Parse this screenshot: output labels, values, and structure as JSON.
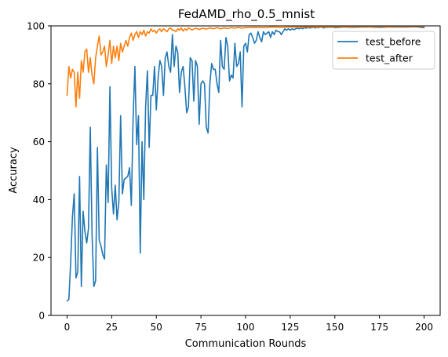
{
  "chart_data": {
    "type": "line",
    "title": "FedAMD_rho_0.5_mnist",
    "xlabel": "Communication Rounds",
    "ylabel": "Accuracy",
    "xlim": [
      -9,
      209
    ],
    "ylim": [
      0,
      100
    ],
    "xticks": [
      0,
      25,
      50,
      75,
      100,
      125,
      150,
      175,
      200
    ],
    "yticks": [
      0,
      20,
      40,
      60,
      80,
      100
    ],
    "grid": false,
    "legend": "top-right",
    "series": [
      {
        "name": "test_before",
        "color": "#1f77b4",
        "points": [
          [
            0,
            5
          ],
          [
            1,
            5.5
          ],
          [
            2,
            18
          ],
          [
            3,
            34
          ],
          [
            4,
            42
          ],
          [
            5,
            13
          ],
          [
            6,
            15
          ],
          [
            7,
            48
          ],
          [
            8,
            10
          ],
          [
            9,
            36
          ],
          [
            10,
            29
          ],
          [
            11,
            25
          ],
          [
            12,
            30
          ],
          [
            13,
            65
          ],
          [
            14,
            28
          ],
          [
            15,
            10
          ],
          [
            16,
            12
          ],
          [
            17,
            58
          ],
          [
            18,
            26
          ],
          [
            19,
            24
          ],
          [
            20,
            21
          ],
          [
            21,
            19.5
          ],
          [
            22,
            52
          ],
          [
            23,
            39
          ],
          [
            24,
            79
          ],
          [
            25,
            44
          ],
          [
            26,
            35
          ],
          [
            27,
            45
          ],
          [
            28,
            33
          ],
          [
            29,
            39
          ],
          [
            30,
            69
          ],
          [
            31,
            42
          ],
          [
            32,
            47
          ],
          [
            33,
            47.5
          ],
          [
            34,
            48
          ],
          [
            35,
            51
          ],
          [
            36,
            38
          ],
          [
            37,
            68
          ],
          [
            38,
            86
          ],
          [
            39,
            59
          ],
          [
            40,
            69
          ],
          [
            41,
            21.5
          ],
          [
            42,
            60
          ],
          [
            43,
            40
          ],
          [
            44,
            72
          ],
          [
            45,
            84.5
          ],
          [
            46,
            58
          ],
          [
            47,
            76
          ],
          [
            48,
            76
          ],
          [
            49,
            86
          ],
          [
            50,
            71
          ],
          [
            51,
            82
          ],
          [
            52,
            88
          ],
          [
            53,
            86
          ],
          [
            54,
            76
          ],
          [
            55,
            89
          ],
          [
            56,
            91
          ],
          [
            57,
            86
          ],
          [
            58,
            84
          ],
          [
            59,
            97
          ],
          [
            60,
            86
          ],
          [
            61,
            93
          ],
          [
            62,
            91
          ],
          [
            63,
            77
          ],
          [
            64,
            84
          ],
          [
            65,
            86
          ],
          [
            66,
            79
          ],
          [
            67,
            70
          ],
          [
            68,
            72
          ],
          [
            69,
            89
          ],
          [
            70,
            88
          ],
          [
            71,
            74
          ],
          [
            72,
            88
          ],
          [
            73,
            86
          ],
          [
            74,
            66
          ],
          [
            75,
            80
          ],
          [
            76,
            81
          ],
          [
            77,
            80
          ],
          [
            78,
            65
          ],
          [
            79,
            63
          ],
          [
            80,
            80
          ],
          [
            81,
            87
          ],
          [
            82,
            85
          ],
          [
            83,
            85
          ],
          [
            84,
            80
          ],
          [
            85,
            77
          ],
          [
            86,
            95
          ],
          [
            87,
            86
          ],
          [
            88,
            85
          ],
          [
            89,
            96
          ],
          [
            90,
            93
          ],
          [
            91,
            81
          ],
          [
            92,
            83
          ],
          [
            93,
            82
          ],
          [
            94,
            94
          ],
          [
            95,
            86
          ],
          [
            96,
            87
          ],
          [
            97,
            91
          ],
          [
            98,
            72
          ],
          [
            99,
            93
          ],
          [
            100,
            94
          ],
          [
            101,
            91
          ],
          [
            102,
            97
          ],
          [
            103,
            97.5
          ],
          [
            104,
            96
          ],
          [
            105,
            94
          ],
          [
            106,
            95
          ],
          [
            107,
            98
          ],
          [
            108,
            96
          ],
          [
            109,
            94.5
          ],
          [
            110,
            98
          ],
          [
            111,
            97
          ],
          [
            112,
            97.5
          ],
          [
            113,
            98
          ],
          [
            114,
            96
          ],
          [
            115,
            98
          ],
          [
            116,
            97
          ],
          [
            117,
            98.5
          ],
          [
            118,
            98
          ],
          [
            119,
            98
          ],
          [
            120,
            97
          ],
          [
            121,
            98
          ],
          [
            122,
            99
          ],
          [
            123,
            98.5
          ],
          [
            124,
            99
          ],
          [
            125,
            98.5
          ],
          [
            126,
            99
          ],
          [
            127,
            98.7
          ],
          [
            128,
            99
          ],
          [
            129,
            99.2
          ],
          [
            130,
            99
          ],
          [
            131,
            99.3
          ],
          [
            132,
            99
          ],
          [
            133,
            99.4
          ],
          [
            134,
            99.2
          ],
          [
            135,
            99.5
          ],
          [
            136,
            99.3
          ],
          [
            137,
            99.4
          ],
          [
            138,
            99.5
          ],
          [
            139,
            99.3
          ],
          [
            140,
            99.5
          ],
          [
            141,
            99.4
          ],
          [
            142,
            99.6
          ],
          [
            143,
            99.5
          ],
          [
            144,
            99.3
          ],
          [
            145,
            99.6
          ],
          [
            146,
            99.5
          ],
          [
            147,
            99.6
          ],
          [
            148,
            99.5
          ],
          [
            149,
            99.6
          ],
          [
            150,
            99.4
          ],
          [
            155,
            99.6
          ],
          [
            160,
            99.5
          ],
          [
            165,
            99.6
          ],
          [
            170,
            99.6
          ],
          [
            175,
            99.5
          ],
          [
            180,
            99.6
          ],
          [
            185,
            99.6
          ],
          [
            190,
            99.6
          ],
          [
            195,
            99.7
          ],
          [
            200,
            99.4
          ]
        ]
      },
      {
        "name": "test_after",
        "color": "#ff7f0e",
        "points": [
          [
            0,
            76
          ],
          [
            1,
            86
          ],
          [
            2,
            82
          ],
          [
            3,
            85
          ],
          [
            4,
            84
          ],
          [
            5,
            72
          ],
          [
            6,
            84
          ],
          [
            7,
            75
          ],
          [
            8,
            88
          ],
          [
            9,
            84
          ],
          [
            10,
            91
          ],
          [
            11,
            92
          ],
          [
            12,
            84
          ],
          [
            13,
            89
          ],
          [
            14,
            83
          ],
          [
            15,
            80
          ],
          [
            16,
            89
          ],
          [
            17,
            93
          ],
          [
            18,
            96.5
          ],
          [
            19,
            90
          ],
          [
            20,
            91
          ],
          [
            21,
            93
          ],
          [
            22,
            86
          ],
          [
            23,
            90
          ],
          [
            24,
            95
          ],
          [
            25,
            87
          ],
          [
            26,
            93
          ],
          [
            27,
            89
          ],
          [
            28,
            93
          ],
          [
            29,
            88
          ],
          [
            30,
            94
          ],
          [
            31,
            91
          ],
          [
            32,
            93
          ],
          [
            33,
            95
          ],
          [
            34,
            93
          ],
          [
            35,
            96
          ],
          [
            36,
            97.5
          ],
          [
            37,
            95
          ],
          [
            38,
            97
          ],
          [
            39,
            98
          ],
          [
            40,
            96
          ],
          [
            41,
            98
          ],
          [
            42,
            97
          ],
          [
            43,
            98.5
          ],
          [
            44,
            96.5
          ],
          [
            45,
            98
          ],
          [
            46,
            97.5
          ],
          [
            47,
            99
          ],
          [
            48,
            98
          ],
          [
            49,
            98.5
          ],
          [
            50,
            97.5
          ],
          [
            51,
            98.5
          ],
          [
            52,
            99
          ],
          [
            53,
            98
          ],
          [
            54,
            99
          ],
          [
            55,
            98.5
          ],
          [
            56,
            98
          ],
          [
            57,
            99
          ],
          [
            58,
            99.3
          ],
          [
            59,
            98.5
          ],
          [
            60,
            98.5
          ],
          [
            61,
            98
          ],
          [
            62,
            99
          ],
          [
            63,
            98.5
          ],
          [
            64,
            99.3
          ],
          [
            65,
            98.2
          ],
          [
            66,
            99
          ],
          [
            67,
            98.5
          ],
          [
            68,
            99.3
          ],
          [
            69,
            99
          ],
          [
            70,
            98.6
          ],
          [
            72,
            99.2
          ],
          [
            74,
            98.8
          ],
          [
            76,
            99.2
          ],
          [
            78,
            98.9
          ],
          [
            80,
            99.3
          ],
          [
            82,
            99
          ],
          [
            84,
            99.4
          ],
          [
            86,
            99
          ],
          [
            88,
            99.3
          ],
          [
            90,
            99.1
          ],
          [
            92,
            99.4
          ],
          [
            94,
            99.2
          ],
          [
            96,
            99.5
          ],
          [
            98,
            99.2
          ],
          [
            100,
            99.4
          ],
          [
            105,
            99.5
          ],
          [
            110,
            99.4
          ],
          [
            115,
            99.6
          ],
          [
            120,
            99.5
          ],
          [
            125,
            99.6
          ],
          [
            130,
            99.6
          ],
          [
            135,
            99.7
          ],
          [
            140,
            99.6
          ],
          [
            145,
            99.7
          ],
          [
            150,
            99.7
          ],
          [
            155,
            99.7
          ],
          [
            160,
            99.7
          ],
          [
            165,
            99.8
          ],
          [
            170,
            99.7
          ],
          [
            175,
            99.8
          ],
          [
            180,
            99.7
          ],
          [
            185,
            99.8
          ],
          [
            190,
            99.8
          ],
          [
            195,
            99.8
          ],
          [
            200,
            99.8
          ]
        ]
      }
    ]
  }
}
